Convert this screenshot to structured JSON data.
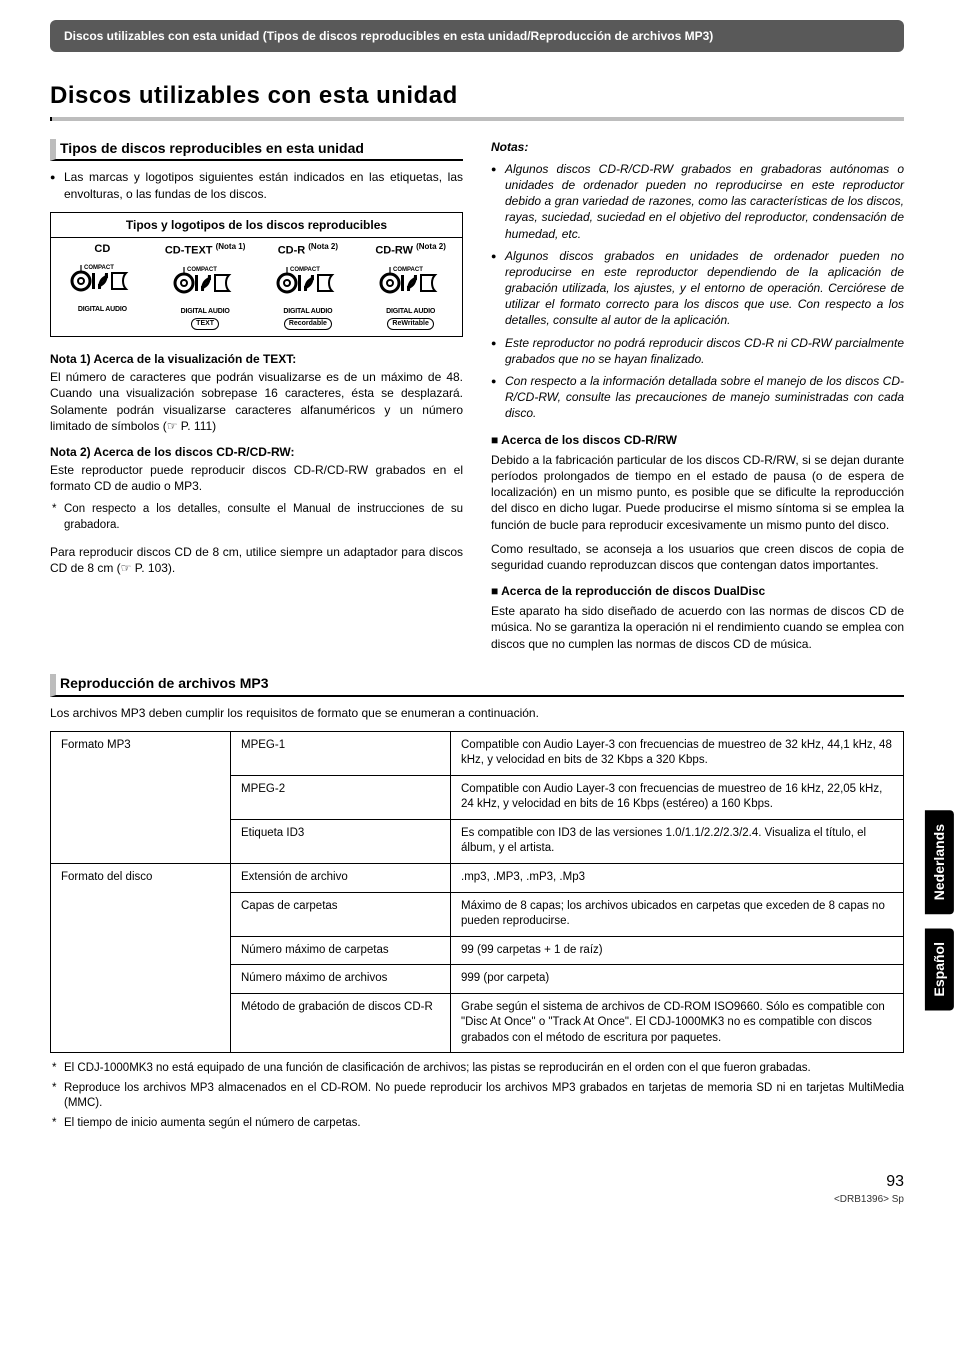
{
  "header_bar": "Discos utilizables con esta unidad (Tipos de discos reproducibles en esta unidad/Reproducción de archivos MP3)",
  "main_title": "Discos utilizables con esta unidad",
  "left": {
    "section_title": "Tipos de discos reproducibles en esta unidad",
    "intro_bullet": "Las marcas y logotipos siguientes están indicados en las etiquetas, las envolturas, o las fundas de los discos.",
    "logo_table": {
      "title": "Tipos y logotipos de los discos reproducibles",
      "cols": [
        {
          "label": "CD",
          "note": "",
          "sub1": "DIGITAL AUDIO",
          "pill": ""
        },
        {
          "label": "CD-TEXT",
          "note": "(Nota 1)",
          "sub1": "DIGITAL AUDIO",
          "pill": "TEXT"
        },
        {
          "label": "CD-R",
          "note": "(Nota 2)",
          "sub1": "DIGITAL AUDIO",
          "pill": "Recordable"
        },
        {
          "label": "CD-RW",
          "note": "(Nota 2)",
          "sub1": "DIGITAL AUDIO",
          "pill": "ReWritable"
        }
      ]
    },
    "nota1_head": "Nota 1)  Acerca de la visualización de TEXT:",
    "nota1_body": "El número de caracteres que podrán visualizarse es de un máximo de 48. Cuando una visualización sobrepase 16 caracteres, ésta se desplazará. Solamente podrán visualizarse caracteres alfanuméricos y un número limitado de símbolos (☞ P. 111)",
    "nota2_head": "Nota 2) Acerca de los discos CD-R/CD-RW:",
    "nota2_body1": "Este reproductor puede reproducir discos CD-R/CD-RW grabados en el formato CD de audio o MP3.",
    "nota2_body2": "Con respecto a los detalles, consulte el Manual de instrucciones de su grabadora.",
    "note_8cm": "Para reproducir discos CD de 8 cm, utilice siempre un adaptador para discos CD de 8 cm (☞ P. 103)."
  },
  "right": {
    "notes_title": "Notas:",
    "bullets": [
      "Algunos discos CD-R/CD-RW grabados en grabadoras autónomas o unidades de ordenador pueden no reproducirse en este reproductor debido a gran variedad de razones, como las características de los discos, rayas, suciedad, suciedad en el objetivo del reproductor, condensación de humedad, etc.",
      "Algunos discos grabados en unidades de ordenador pueden no reproducirse en este reproductor dependiendo de la aplicación de grabación utilizada, los ajustes, y el entorno de operación. Cerciórese de utilizar el formato correcto para los discos que use. Con respecto a los detalles, consulte al autor de la aplicación.",
      "Este reproductor no podrá reproducir discos CD-R ni CD-RW parcialmente grabados que no se hayan finalizado.",
      "Con respecto a la información detallada sobre el manejo de los discos CD-R/CD-RW, consulte las precauciones de manejo suministradas con cada disco."
    ],
    "sq1_head": "Acerca de los discos CD-R/RW",
    "sq1_body1": "Debido a la fabricación particular de los discos CD-R/RW, si se dejan durante períodos prolongados de tiempo en el estado de pausa (o de espera de localización) en un mismo punto, es posible que se dificulte la reproducción del disco en dicho lugar. Puede producirse el mismo síntoma si se emplea la función de bucle para reproducir excesivamente un mismo punto del disco.",
    "sq1_body2": "Como resultado, se aconseja a los usuarios que creen discos de copia de seguridad cuando reproduzcan discos que contengan datos importantes.",
    "sq2_head": "Acerca de la reproducción de discos DualDisc",
    "sq2_body": "Este aparato ha sido diseñado de acuerdo con las normas de discos CD de música. No se garantiza la operación ni el rendimiento cuando se emplea con discos que no cumplen las normas de discos CD de música."
  },
  "mp3": {
    "section_title": "Reproducción de archivos MP3",
    "intro": "Los archivos MP3 deben cumplir los requisitos de formato que se enumeran a continuación.",
    "rows": [
      {
        "c1": "Formato MP3",
        "c2": "MPEG-1",
        "c3": "Compatible con Audio Layer-3 con frecuencias de muestreo de 32 kHz, 44,1 kHz, 48 kHz, y velocidad en bits de 32 Kbps a 320 Kbps.",
        "rs1": 3
      },
      {
        "c2": "MPEG-2",
        "c3": "Compatible con Audio Layer-3 con frecuencias de muestreo de 16 kHz, 22,05 kHz, 24 kHz, y velocidad en bits de 16 Kbps (estéreo) a 160 Kbps."
      },
      {
        "c2": "Etiqueta ID3",
        "c3": "Es compatible con ID3 de las versiones 1.0/1.1/2.2/2.3/2.4. Visualiza el título, el álbum, y el artista."
      },
      {
        "c1": "Formato del disco",
        "c2": "Extensión de archivo",
        "c3": ".mp3, .MP3, .mP3, .Mp3",
        "rs1": 5
      },
      {
        "c2": "Capas de carpetas",
        "c3": "Máximo de 8 capas; los archivos ubicados en carpetas que exceden de 8 capas no pueden reproducirse."
      },
      {
        "c2": "Número máximo de carpetas",
        "c3": "99 (99 carpetas + 1 de raíz)"
      },
      {
        "c2": "Número máximo de archivos",
        "c3": "999 (por carpeta)"
      },
      {
        "c2": "Método de grabación de discos CD-R",
        "c3": "Grabe según el sistema de archivos de CD-ROM ISO9660. Sólo es compatible con \"Disc At Once\" o \"Track At Once\". El CDJ-1000MK3 no es compatible con discos grabados con el método de escritura por paquetes."
      }
    ],
    "footnotes": [
      "El CDJ-1000MK3 no está equipado de una función de clasificación de archivos; las pistas se reproducirán en el orden con el que fueron grabadas.",
      "Reproduce los archivos MP3 almacenados en el CD-ROM. No puede reproducir los archivos MP3 grabados en tarjetas de memoria SD ni en tarjetas MultiMedia (MMC).",
      "El tiempo de inicio aumenta según el número de carpetas."
    ]
  },
  "tabs": {
    "nl": "Nederlands",
    "es": "Español"
  },
  "page_number": "93",
  "page_code": "<DRB1396> Sp"
}
